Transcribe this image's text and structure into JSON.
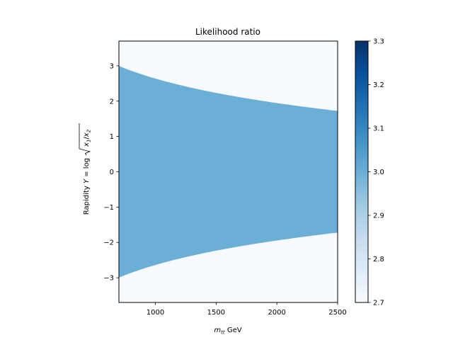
{
  "chart_data": {
    "type": "heatmap",
    "title": "Likelihood ratio",
    "xlabel": {
      "var": "m",
      "sub": "tt",
      "unit": " GeV"
    },
    "ylabel": {
      "prefix": "Rapidity ",
      "var": "Y",
      "eq": " = log",
      "x1": "x",
      "s1": "1",
      "slash": "/",
      "x2": "x",
      "s2": "2"
    },
    "xlim": [
      700,
      2500
    ],
    "ylim": [
      -3.7,
      3.7
    ],
    "xticks": [
      1000,
      1500,
      2000,
      2500
    ],
    "yticks": [
      -3,
      -2,
      -1,
      0,
      1,
      2,
      3
    ],
    "xtick_labels": [
      "1000",
      "1500",
      "2000",
      "2500"
    ],
    "ytick_labels": [
      "−3",
      "−2",
      "−1",
      "0",
      "1",
      "2",
      "3"
    ],
    "region_value": 3.0,
    "background_value": 2.7,
    "boundary_formula": "|Y| < ln(sqrt(s)/m_tt), sqrt(s) = 14000 GeV",
    "sqrt_s": 14000,
    "colorbar": {
      "colormap": "Blues",
      "range": [
        2.7,
        3.3
      ],
      "ticks": [
        2.7,
        2.8,
        2.9,
        3.0,
        3.1,
        3.2,
        3.3
      ],
      "tick_labels": [
        "2.7",
        "2.8",
        "2.9",
        "3.0",
        "3.1",
        "3.2",
        "3.3"
      ]
    },
    "colors": {
      "region": "#6baed6",
      "background": "#f7fbff",
      "colormap_stops": [
        "#f7fbff",
        "#deebf7",
        "#c6dbef",
        "#9ecae1",
        "#6baed6",
        "#4292c6",
        "#2171b5",
        "#08519c",
        "#08306b"
      ]
    }
  }
}
